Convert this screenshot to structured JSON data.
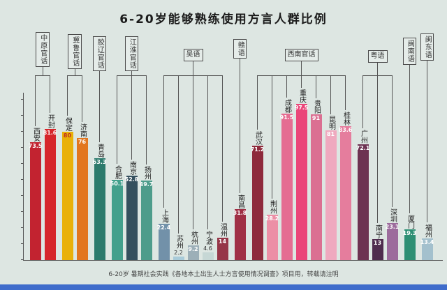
{
  "title": "6-20岁能够熟练使用方言人群比例",
  "footer": "6-20岁 暑期社会实践《各地本土出生人士方言使用情况调查》项目用，转载请注明",
  "colors": {
    "background": "#dde6e2",
    "axis": "#555555",
    "bottom_strip": "#3f6ccb"
  },
  "chart_data": {
    "type": "bar",
    "title": "6-20岁能够熟练使用方言人群比例",
    "xlabel": "",
    "ylabel": "",
    "unit": "%",
    "ylim": [
      0,
      100
    ],
    "grid": false,
    "legend": false,
    "groups": [
      {
        "label": "中原官话",
        "box_shape": "v4",
        "box_raise": 0,
        "cities": [
          {
            "name": "西安",
            "value": 73.5,
            "color": "#c22330"
          },
          {
            "name": "开封",
            "value": 81.6,
            "color": "#d6262b"
          }
        ]
      },
      {
        "label": "冀鲁官话",
        "box_shape": "v4",
        "box_raise": 3,
        "cities": [
          {
            "name": "保定",
            "value": 80,
            "color": "#e9b10a",
            "value_color": "#c03020"
          },
          {
            "name": "济南",
            "value": 76,
            "color": "#e2761f"
          }
        ]
      },
      {
        "label": "胶辽官话",
        "box_shape": "v4",
        "box_raise": 6,
        "cities": [
          {
            "name": "青岛",
            "value": 63.3,
            "color": "#2c7a6c"
          }
        ]
      },
      {
        "label": "江淮官话",
        "box_shape": "v4",
        "box_raise": 6,
        "cities": [
          {
            "name": "合肥",
            "value": 50.1,
            "color": "#43a08c"
          },
          {
            "name": "南京",
            "value": 52.8,
            "color": "#35505e"
          },
          {
            "name": "扬州",
            "value": 49.7,
            "color": "#4d9c8b"
          }
        ]
      },
      {
        "label": "吴语",
        "box_shape": "h",
        "box_raise": 24,
        "cities": [
          {
            "name": "上海",
            "value": 22.4,
            "color": "#7291a9"
          },
          {
            "name": "苏州",
            "value": 2.2,
            "color": "#a9cbd9"
          },
          {
            "name": "杭州",
            "value": 9.2,
            "color": "#9cafb8"
          },
          {
            "name": "宁波",
            "value": 4.6,
            "color": "#c6d7d5"
          },
          {
            "name": "温州",
            "value": 14,
            "color": "#963648"
          }
        ]
      },
      {
        "label": "赣语",
        "box_shape": "v2",
        "box_raise": 10,
        "cities": [
          {
            "name": "南昌",
            "value": 31.8,
            "color": "#a03045"
          }
        ]
      },
      {
        "label": "西南官话",
        "box_shape": "h",
        "box_raise": 24,
        "cities": [
          {
            "name": "武汉",
            "value": 71.2,
            "color": "#8e2a3c"
          },
          {
            "name": "荆州",
            "value": 28.2,
            "color": "#ec8fa6"
          },
          {
            "name": "成都",
            "value": 91.5,
            "color": "#e56d92"
          },
          {
            "name": "重庆",
            "value": 97.5,
            "color": "#ea4679"
          },
          {
            "name": "贵阳",
            "value": 91,
            "color": "#db6f92"
          },
          {
            "name": "昆明",
            "value": 81,
            "color": "#efa9bf"
          },
          {
            "name": "桂林",
            "value": 83.6,
            "color": "#e57d9d"
          }
        ]
      },
      {
        "label": "粤语",
        "box_shape": "h",
        "box_raise": 26,
        "cities": [
          {
            "name": "广州",
            "value": 72.1,
            "color": "#6d3352"
          },
          {
            "name": "南宁",
            "value": 13,
            "color": "#4f2c4e"
          },
          {
            "name": "深圳",
            "value": 23.1,
            "color": "#9c6b9c"
          }
        ]
      },
      {
        "label": "闽南语",
        "box_shape": "v3",
        "box_raise": 8,
        "cities": [
          {
            "name": "厦门",
            "value": 19.3,
            "color": "#2e8f74"
          }
        ]
      },
      {
        "label": "闽东语",
        "box_shape": "v3",
        "box_raise": 2,
        "cities": [
          {
            "name": "福州",
            "value": 13.4,
            "color": "#a3c0cd"
          }
        ]
      }
    ]
  }
}
